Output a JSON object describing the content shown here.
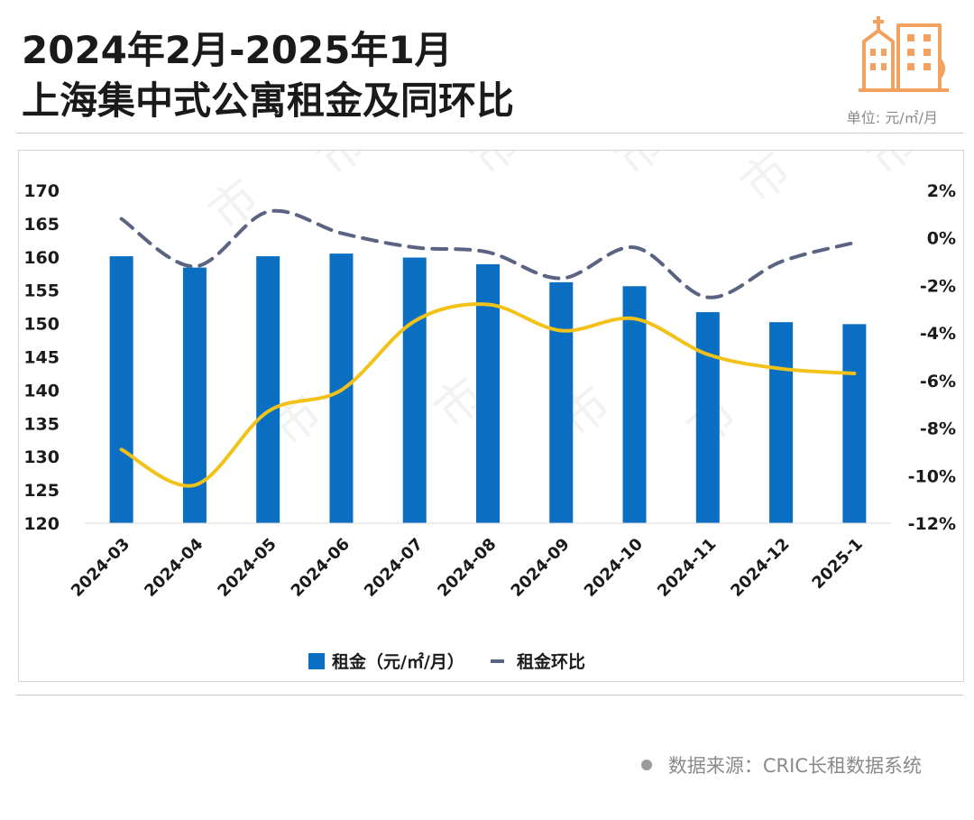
{
  "header": {
    "title_line1": "2024年2月-2025年1月",
    "title_line2": "上海集中式公寓租金及同环比",
    "unit": "单位: 元/㎡/月",
    "logo_icon": "city-buildings-icon",
    "logo_color": "#F2A15E"
  },
  "chart_data": {
    "type": "bar",
    "categories": [
      "2024-03",
      "2024-04",
      "2024-05",
      "2024-06",
      "2024-07",
      "2024-08",
      "2024-09",
      "2024-10",
      "2024-11",
      "2024-12",
      "2025-1"
    ],
    "series": [
      {
        "name": "租金（元/㎡/月）",
        "type": "bar",
        "axis": "left",
        "color": "#0A6FC2",
        "values": [
          160.1,
          158.4,
          160.1,
          160.5,
          159.9,
          158.9,
          156.2,
          155.6,
          151.7,
          150.2,
          149.9
        ]
      },
      {
        "name": "租金环比",
        "type": "line",
        "axis": "right",
        "color": "#5A6482",
        "dashed": true,
        "values": [
          0.8,
          -1.2,
          1.1,
          0.2,
          -0.4,
          -0.6,
          -1.7,
          -0.4,
          -2.5,
          -1.0,
          -0.2
        ]
      },
      {
        "name": "",
        "type": "line",
        "axis": "right",
        "color": "#F2C21A",
        "dashed": false,
        "values": [
          -8.9,
          -10.4,
          -7.3,
          -6.4,
          -3.5,
          -2.8,
          -3.9,
          -3.4,
          -4.9,
          -5.5,
          -5.7
        ]
      }
    ],
    "y_left": {
      "min": 120,
      "max": 170,
      "ticks": [
        170,
        165,
        160,
        155,
        150,
        145,
        140,
        135,
        130,
        125,
        120
      ]
    },
    "y_right": {
      "min": -12,
      "max": 2,
      "ticks": [
        "2%",
        "0%",
        "-2%",
        "-4%",
        "-6%",
        "-8%",
        "-10%",
        "-12%"
      ]
    },
    "grid": false,
    "legend": "bottom-center",
    "watermark": "市"
  },
  "footer": {
    "source": "数据来源：CRIC长租数据系统"
  }
}
